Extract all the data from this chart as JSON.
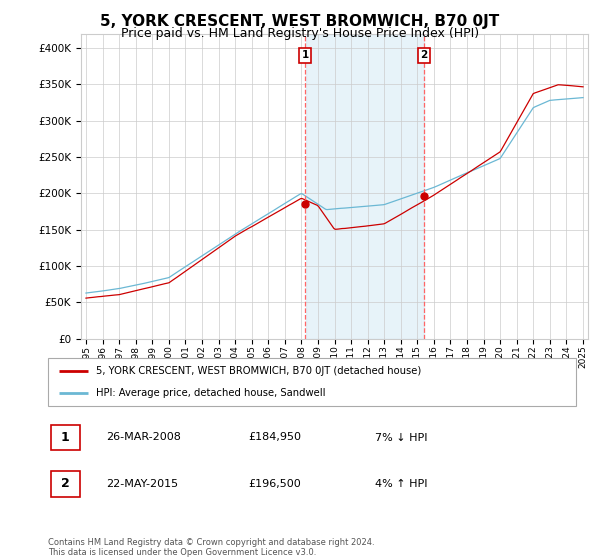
{
  "title": "5, YORK CRESCENT, WEST BROMWICH, B70 0JT",
  "subtitle": "Price paid vs. HM Land Registry's House Price Index (HPI)",
  "title_fontsize": 11,
  "subtitle_fontsize": 9,
  "ylabel_ticks": [
    "£0",
    "£50K",
    "£100K",
    "£150K",
    "£200K",
    "£250K",
    "£300K",
    "£350K",
    "£400K"
  ],
  "ytick_values": [
    0,
    50000,
    100000,
    150000,
    200000,
    250000,
    300000,
    350000,
    400000
  ],
  "ylim": [
    0,
    420000
  ],
  "sale1_x": 2008.23,
  "sale1_y": 184950,
  "sale1_label": "1",
  "sale1_date": "26-MAR-2008",
  "sale1_price": "£184,950",
  "sale1_hpi": "7% ↓ HPI",
  "sale2_x": 2015.39,
  "sale2_y": 196500,
  "sale2_label": "2",
  "sale2_date": "22-MAY-2015",
  "sale2_price": "£196,500",
  "sale2_hpi": "4% ↑ HPI",
  "hpi_line_color": "#6BB8D4",
  "sale_line_color": "#CC0000",
  "vline_color": "#FF6666",
  "shade_color": "#D0E8F5",
  "grid_color": "#CCCCCC",
  "background_color": "#FFFFFF",
  "legend_sale_label": "5, YORK CRESCENT, WEST BROMWICH, B70 0JT (detached house)",
  "legend_hpi_label": "HPI: Average price, detached house, Sandwell",
  "footnote": "Contains HM Land Registry data © Crown copyright and database right 2024.\nThis data is licensed under the Open Government Licence v3.0.",
  "xtick_years": [
    1995,
    1996,
    1997,
    1998,
    1999,
    2000,
    2001,
    2002,
    2003,
    2004,
    2005,
    2006,
    2007,
    2008,
    2009,
    2010,
    2011,
    2012,
    2013,
    2014,
    2015,
    2016,
    2017,
    2018,
    2019,
    2020,
    2021,
    2022,
    2023,
    2024,
    2025
  ]
}
